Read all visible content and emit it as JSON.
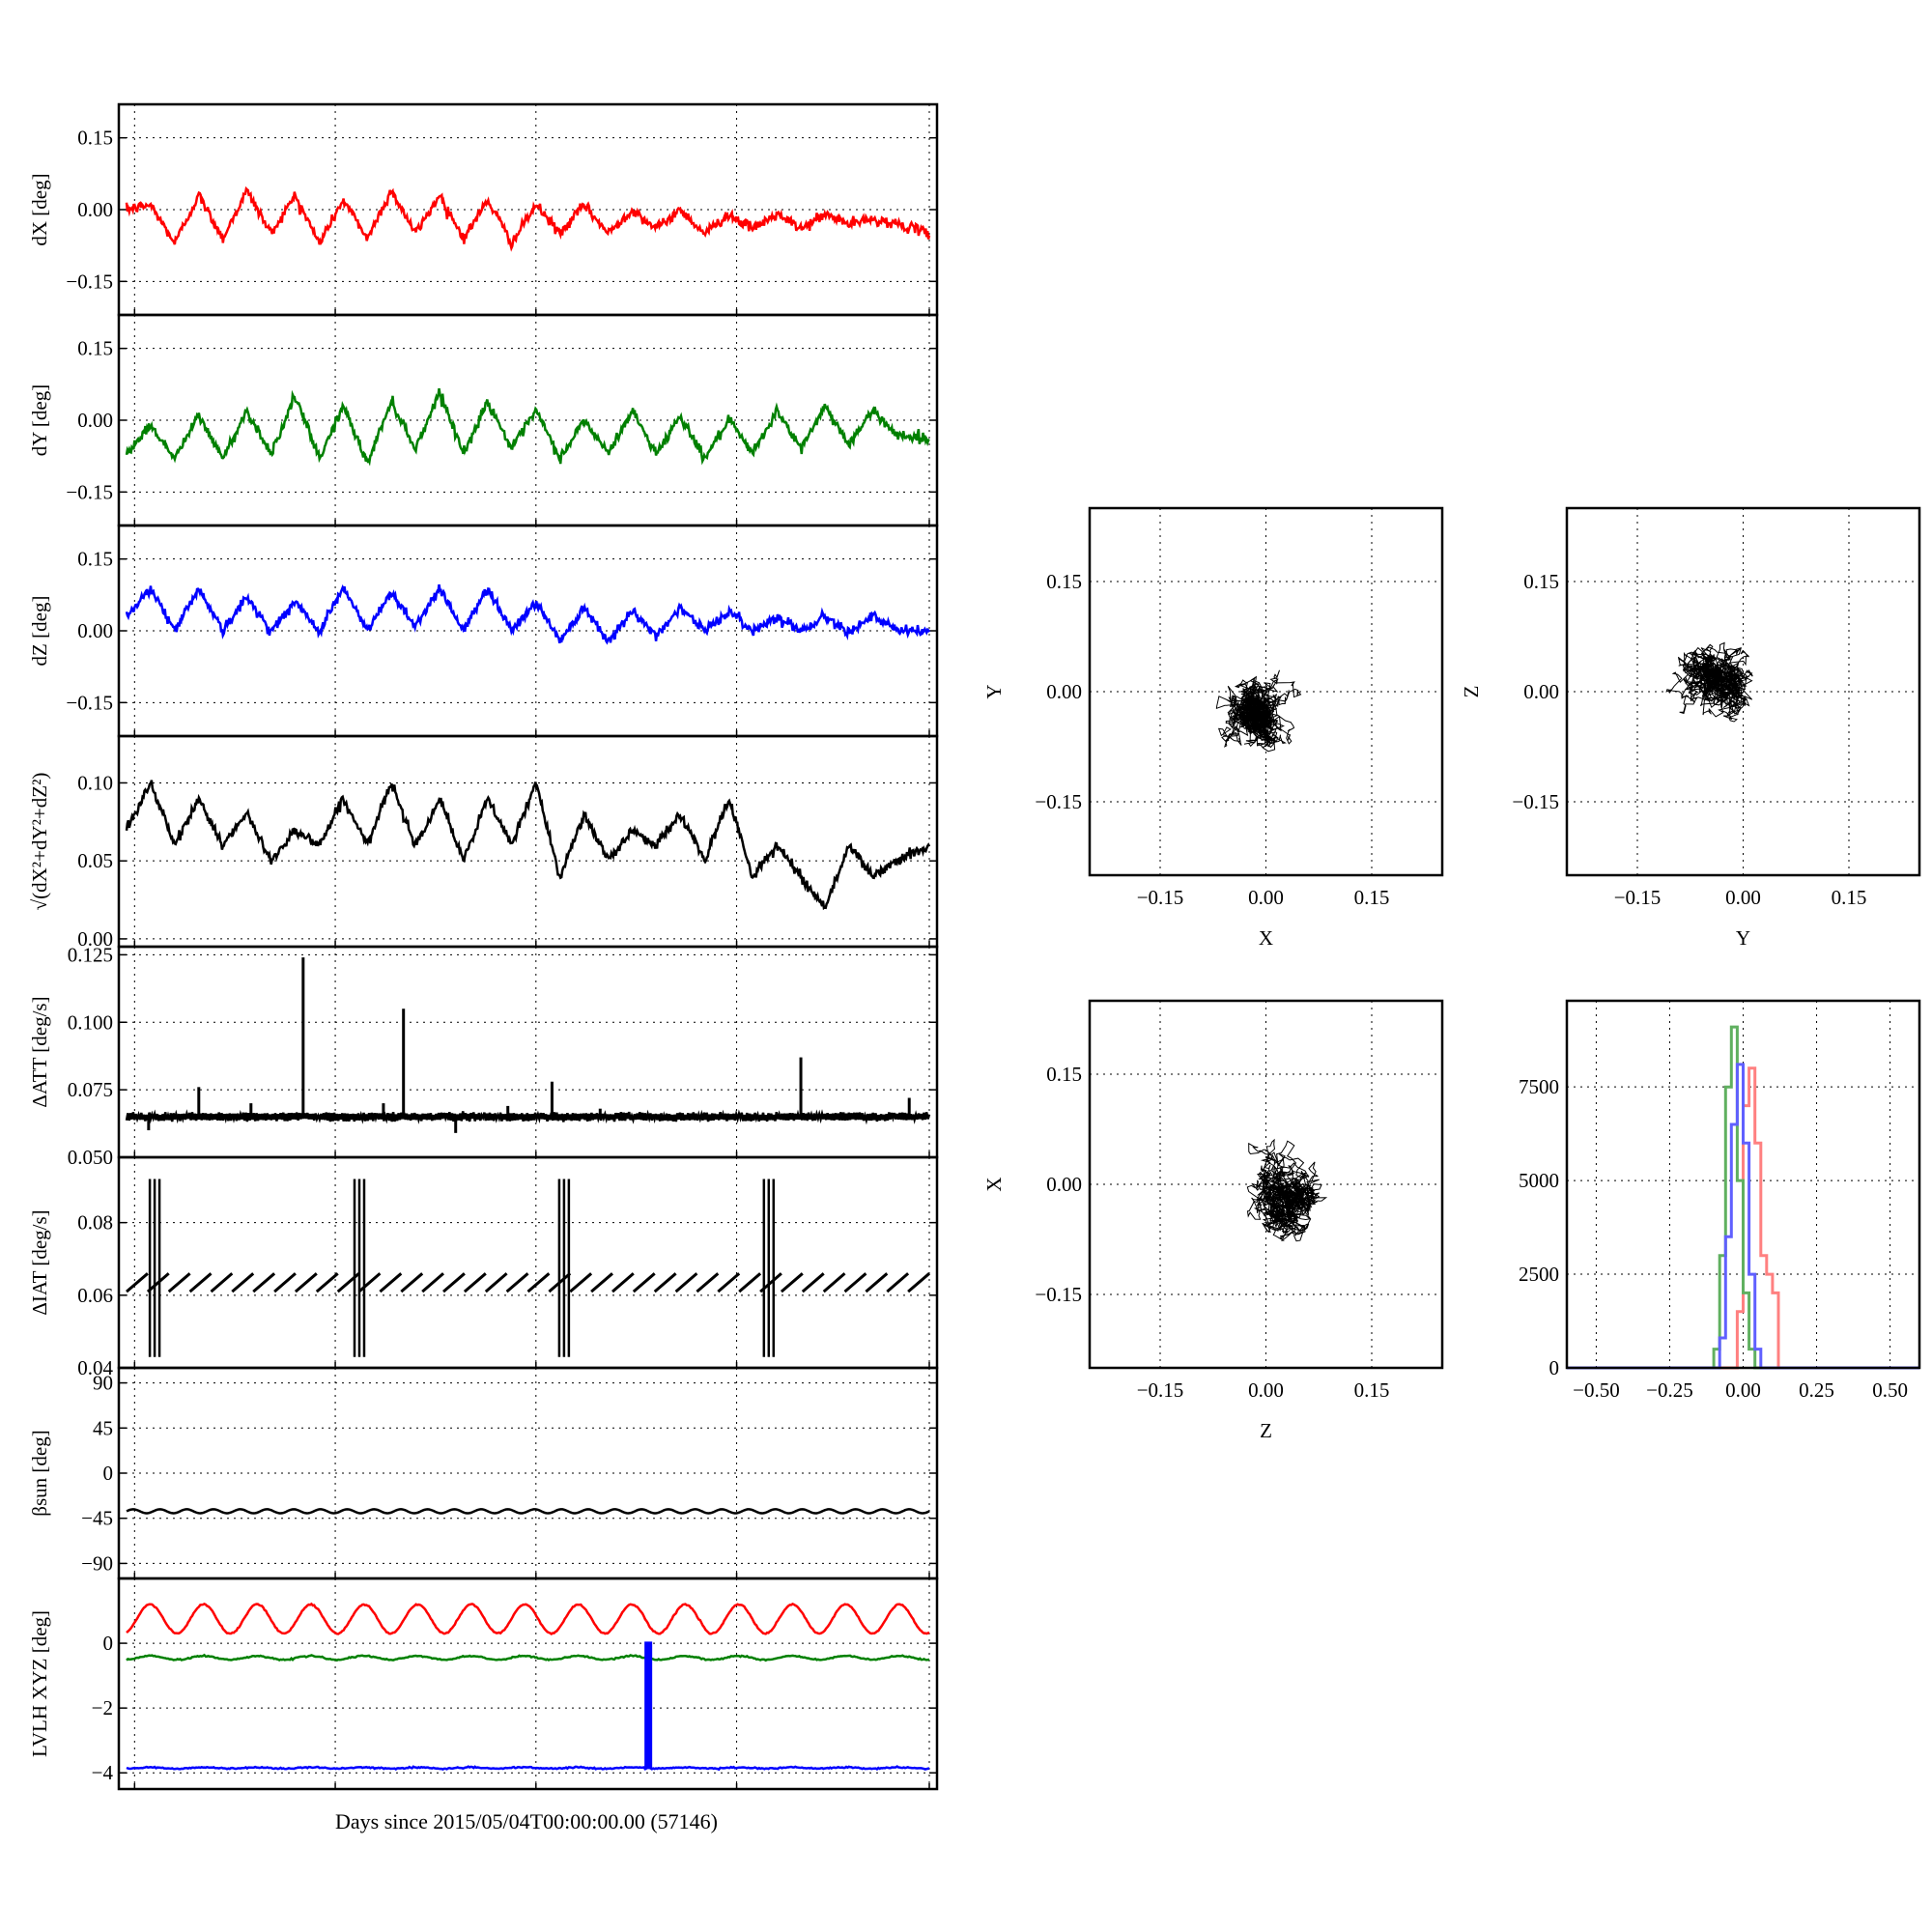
{
  "figure": {
    "xlabel": "Days since 2015/05/04T00:00:00.00 (57146)",
    "panel_colors": {
      "x": "#ff0000",
      "y": "#008000",
      "z": "#0000ff",
      "k": "#000000"
    }
  },
  "chart_data": [
    {
      "type": "line",
      "name": "dx-panel",
      "ylabel": "dX [deg]",
      "ylim": [
        -0.22,
        0.22
      ],
      "yticks": [
        0.15,
        0.0,
        -0.15
      ],
      "yticklabels": [
        "0.15",
        "0.00",
        "−0.15"
      ],
      "color": "#ff0000",
      "x": [
        0.0,
        0.03,
        0.06,
        0.09,
        0.12,
        0.15,
        0.18,
        0.21,
        0.24,
        0.27,
        0.3,
        0.33,
        0.36,
        0.39,
        0.42,
        0.45,
        0.48,
        0.51,
        0.54,
        0.57,
        0.6,
        0.63,
        0.66,
        0.69,
        0.72,
        0.75,
        0.78,
        0.81,
        0.84,
        0.87,
        0.9,
        0.93,
        0.96,
        1.0
      ],
      "y": [
        0.0,
        0.01,
        -0.07,
        0.03,
        -0.06,
        0.04,
        -0.05,
        0.03,
        -0.07,
        0.02,
        -0.06,
        0.04,
        -0.05,
        0.03,
        -0.06,
        0.02,
        -0.07,
        0.01,
        -0.05,
        0.01,
        -0.05,
        0.0,
        -0.04,
        0.0,
        -0.05,
        -0.01,
        -0.04,
        -0.01,
        -0.04,
        -0.01,
        -0.03,
        -0.02,
        -0.03,
        -0.05
      ]
    },
    {
      "type": "line",
      "name": "dy-panel",
      "ylabel": "dY [deg]",
      "ylim": [
        -0.22,
        0.22
      ],
      "yticks": [
        0.15,
        0.0,
        -0.15
      ],
      "yticklabels": [
        "0.15",
        "0.00",
        "−0.15"
      ],
      "color": "#008000",
      "x": [
        0.0,
        0.03,
        0.06,
        0.09,
        0.12,
        0.15,
        0.18,
        0.21,
        0.24,
        0.27,
        0.3,
        0.33,
        0.36,
        0.39,
        0.42,
        0.45,
        0.48,
        0.51,
        0.54,
        0.57,
        0.6,
        0.63,
        0.66,
        0.69,
        0.72,
        0.75,
        0.78,
        0.81,
        0.84,
        0.87,
        0.9,
        0.93,
        0.96,
        1.0
      ],
      "y": [
        -0.07,
        -0.01,
        -0.08,
        0.01,
        -0.08,
        0.02,
        -0.07,
        0.05,
        -0.08,
        0.03,
        -0.09,
        0.04,
        -0.06,
        0.06,
        -0.07,
        0.04,
        -0.06,
        0.02,
        -0.08,
        0.0,
        -0.07,
        0.02,
        -0.07,
        0.01,
        -0.08,
        0.0,
        -0.07,
        0.02,
        -0.06,
        0.03,
        -0.05,
        0.02,
        -0.03,
        -0.04
      ]
    },
    {
      "type": "line",
      "name": "dz-panel",
      "ylabel": "dZ [deg]",
      "ylim": [
        -0.22,
        0.22
      ],
      "yticks": [
        0.15,
        0.0,
        -0.15
      ],
      "yticklabels": [
        "0.15",
        "0.00",
        "−0.15"
      ],
      "color": "#0000ff",
      "x": [
        0.0,
        0.03,
        0.06,
        0.09,
        0.12,
        0.15,
        0.18,
        0.21,
        0.24,
        0.27,
        0.3,
        0.33,
        0.36,
        0.39,
        0.42,
        0.45,
        0.48,
        0.51,
        0.54,
        0.57,
        0.6,
        0.63,
        0.66,
        0.69,
        0.72,
        0.75,
        0.78,
        0.81,
        0.84,
        0.87,
        0.9,
        0.93,
        0.96,
        1.0
      ],
      "y": [
        0.03,
        0.09,
        0.0,
        0.09,
        0.0,
        0.07,
        0.0,
        0.06,
        0.0,
        0.09,
        0.0,
        0.08,
        0.01,
        0.09,
        0.0,
        0.09,
        0.0,
        0.06,
        -0.02,
        0.05,
        -0.02,
        0.04,
        -0.01,
        0.05,
        0.0,
        0.04,
        0.0,
        0.03,
        0.0,
        0.03,
        0.0,
        0.03,
        0.0,
        0.0
      ]
    },
    {
      "type": "line",
      "name": "r-panel",
      "ylabel": "√(dX²+dY²+dZ²)",
      "ylim": [
        -0.005,
        0.13
      ],
      "yticks": [
        0.1,
        0.05,
        0.0
      ],
      "yticklabels": [
        "0.10",
        "0.05",
        "0.00"
      ],
      "color": "#000000",
      "x": [
        0.0,
        0.03,
        0.06,
        0.09,
        0.12,
        0.15,
        0.18,
        0.21,
        0.24,
        0.27,
        0.3,
        0.33,
        0.36,
        0.39,
        0.42,
        0.45,
        0.48,
        0.51,
        0.54,
        0.57,
        0.6,
        0.63,
        0.66,
        0.69,
        0.72,
        0.75,
        0.78,
        0.81,
        0.84,
        0.87,
        0.9,
        0.93,
        0.96,
        1.0
      ],
      "y": [
        0.07,
        0.1,
        0.06,
        0.09,
        0.06,
        0.08,
        0.05,
        0.07,
        0.06,
        0.09,
        0.06,
        0.1,
        0.06,
        0.09,
        0.05,
        0.09,
        0.06,
        0.1,
        0.04,
        0.08,
        0.05,
        0.07,
        0.06,
        0.08,
        0.05,
        0.09,
        0.04,
        0.06,
        0.04,
        0.02,
        0.06,
        0.04,
        0.05,
        0.06
      ]
    },
    {
      "type": "line",
      "name": "att-panel",
      "ylabel": "ΔATT [deg/s]",
      "ylim": [
        0.05,
        0.128
      ],
      "yticks": [
        0.125,
        0.1,
        0.075,
        0.05
      ],
      "yticklabels": [
        "0.125",
        "0.100",
        "0.075",
        "0.050"
      ],
      "color": "#000000",
      "baseline": 0.065,
      "spikes_x": [
        0.0275,
        0.09,
        0.155,
        0.22,
        0.32,
        0.345,
        0.41,
        0.475,
        0.53,
        0.59,
        0.84,
        0.975
      ],
      "spikes_y": [
        0.06,
        0.076,
        0.07,
        0.124,
        0.07,
        0.105,
        0.059,
        0.069,
        0.078,
        0.068,
        0.087,
        0.072
      ]
    },
    {
      "type": "line",
      "name": "iat-panel",
      "ylabel": "ΔIAT [deg/s]",
      "ylim": [
        0.04,
        0.098
      ],
      "yticks": [
        0.08,
        0.06,
        0.04
      ],
      "yticklabels": [
        "0.08",
        "0.06",
        "0.04"
      ],
      "color": "#000000",
      "baseline": 0.063,
      "burst_x": [
        0.035,
        0.29,
        0.545,
        0.8
      ],
      "burst_y_top": 0.092,
      "burst_y_bottom": 0.043
    },
    {
      "type": "line",
      "name": "beta-panel",
      "ylabel": "βsun [deg]",
      "ylim": [
        -105,
        105
      ],
      "yticks": [
        90,
        45,
        0,
        -45,
        -90
      ],
      "yticklabels": [
        "90",
        "45",
        "0",
        "−45",
        "−90"
      ],
      "color": "#000000",
      "level": -38,
      "amplitude": 2
    },
    {
      "type": "line",
      "name": "lvlh-panel",
      "ylabel": "LVLH XYZ [deg]",
      "ylim": [
        -4.5,
        2.0
      ],
      "yticks": [
        0,
        -2,
        -4
      ],
      "yticklabels": [
        "0",
        "−2",
        "−4"
      ],
      "series": [
        {
          "name": "X",
          "color": "#ff0000",
          "level": 0.75,
          "amplitude": 0.45
        },
        {
          "name": "Y",
          "color": "#008000",
          "level": -0.45,
          "amplitude": 0.06
        },
        {
          "name": "Z",
          "color": "#0000ff",
          "level": -3.85,
          "amplitude": 0.02
        }
      ],
      "dropout_x": 0.65
    },
    {
      "type": "scatter",
      "name": "xy-scatter",
      "xlabel": "X",
      "ylabel": "Y",
      "xlim": [
        -0.25,
        0.25
      ],
      "ylim": [
        -0.25,
        0.25
      ],
      "ticks": [
        -0.15,
        0.0,
        0.15
      ],
      "ticklabels": [
        "−0.15",
        "0.00",
        "0.15"
      ],
      "center": [
        -0.01,
        -0.03
      ],
      "spread": [
        0.03,
        0.03
      ]
    },
    {
      "type": "scatter",
      "name": "yz-scatter",
      "xlabel": "Y",
      "ylabel": "Z",
      "xlim": [
        -0.25,
        0.25
      ],
      "ylim": [
        -0.25,
        0.25
      ],
      "ticks": [
        -0.15,
        0.0,
        0.15
      ],
      "ticklabels": [
        "−0.15",
        "0.00",
        "0.15"
      ],
      "center": [
        -0.04,
        0.02
      ],
      "spread": [
        0.035,
        0.03
      ]
    },
    {
      "type": "scatter",
      "name": "zx-scatter",
      "xlabel": "Z",
      "ylabel": "X",
      "xlim": [
        -0.25,
        0.25
      ],
      "ylim": [
        -0.25,
        0.25
      ],
      "ticks": [
        -0.15,
        0.0,
        0.15
      ],
      "ticklabels": [
        "−0.15",
        "0.00",
        "0.15"
      ],
      "center": [
        0.03,
        -0.02
      ],
      "spread": [
        0.03,
        0.025
      ]
    },
    {
      "type": "line",
      "name": "histogram",
      "xlim": [
        -0.6,
        0.6
      ],
      "ylim": [
        0,
        9800
      ],
      "xticks": [
        -0.5,
        -0.25,
        0.0,
        0.25,
        0.5
      ],
      "xticklabels": [
        "−0.50",
        "−0.25",
        "0.00",
        "0.25",
        "0.50"
      ],
      "yticks": [
        0,
        2500,
        5000,
        7500
      ],
      "yticklabels": [
        "0",
        "2500",
        "5000",
        "7500"
      ],
      "series": [
        {
          "name": "dX",
          "color": "#ff8080",
          "x": [
            -0.6,
            -0.05,
            -0.02,
            0.0,
            0.02,
            0.04,
            0.06,
            0.08,
            0.1,
            0.12,
            0.6
          ],
          "y": [
            0,
            0,
            1500,
            7000,
            8000,
            6000,
            3000,
            2500,
            2000,
            0,
            0
          ]
        },
        {
          "name": "dY",
          "color": "#60b060",
          "x": [
            -0.6,
            -0.12,
            -0.1,
            -0.08,
            -0.06,
            -0.04,
            -0.02,
            0.0,
            0.02,
            0.04,
            0.6
          ],
          "y": [
            0,
            0,
            500,
            3000,
            7500,
            9100,
            5000,
            2000,
            500,
            0,
            0
          ]
        },
        {
          "name": "dZ",
          "color": "#6060ff",
          "x": [
            -0.6,
            -0.1,
            -0.08,
            -0.06,
            -0.04,
            -0.02,
            0.0,
            0.02,
            0.04,
            0.06,
            0.6
          ],
          "y": [
            0,
            0,
            800,
            3500,
            6500,
            8100,
            6000,
            2500,
            500,
            0,
            0
          ]
        }
      ]
    }
  ]
}
